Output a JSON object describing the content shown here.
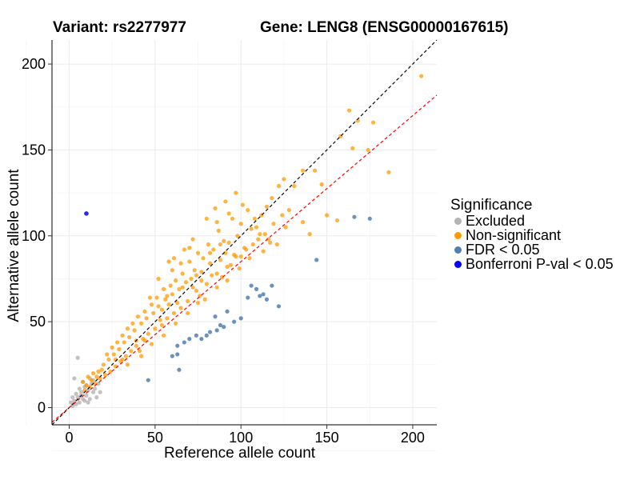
{
  "chart_data": {
    "type": "scatter",
    "title_left": "Variant: rs2277977",
    "title_right": "Gene: LENG8 (ENSG00000167615)",
    "xlabel": "Reference allele count",
    "ylabel": "Alternative allele count",
    "xlim": [
      -10,
      214
    ],
    "ylim": [
      -10,
      214
    ],
    "xticks": [
      0,
      50,
      100,
      150,
      200
    ],
    "yticks": [
      0,
      50,
      100,
      150,
      200
    ],
    "grid": true,
    "legend": {
      "title": "Significance",
      "position": "right",
      "entries": [
        {
          "label": "Excluded",
          "color": "#b3b3b3"
        },
        {
          "label": "Non-significant",
          "color": "#ff9900"
        },
        {
          "label": "FDR < 0.05",
          "color": "#4f7fb3"
        },
        {
          "label": "Bonferroni P-val < 0.05",
          "color": "#0000ff"
        }
      ]
    },
    "reference_lines": [
      {
        "name": "identity",
        "slope": 1.0,
        "intercept": 0,
        "color": "#000000",
        "style": "dashed"
      },
      {
        "name": "fitted",
        "slope": 0.85,
        "intercept": 0,
        "color": "#ff0000",
        "style": "dashed"
      }
    ],
    "series": [
      {
        "name": "Excluded",
        "color": "#b3b3b3",
        "points": [
          [
            2,
            1
          ],
          [
            3,
            4
          ],
          [
            4,
            2
          ],
          [
            5,
            6
          ],
          [
            6,
            3
          ],
          [
            7,
            9
          ],
          [
            8,
            5
          ],
          [
            9,
            12
          ],
          [
            10,
            7
          ],
          [
            11,
            10
          ],
          [
            12,
            5
          ],
          [
            13,
            14
          ],
          [
            14,
            9
          ],
          [
            15,
            11
          ],
          [
            16,
            6
          ],
          [
            4,
            8
          ],
          [
            6,
            11
          ],
          [
            8,
            15
          ],
          [
            5,
            29
          ],
          [
            3,
            17
          ],
          [
            10,
            13
          ],
          [
            12,
            17
          ],
          [
            17,
            14
          ],
          [
            18,
            9
          ],
          [
            9,
            4
          ],
          [
            7,
            7
          ],
          [
            11,
            3
          ],
          [
            14,
            16
          ],
          [
            2,
            6
          ],
          [
            1,
            3
          ]
        ]
      },
      {
        "name": "Non-significant",
        "color": "#ff9900",
        "points": [
          [
            205,
            193
          ],
          [
            163,
            173
          ],
          [
            168,
            167
          ],
          [
            177,
            166
          ],
          [
            165,
            151
          ],
          [
            186,
            137
          ],
          [
            174,
            150
          ],
          [
            158,
            158
          ],
          [
            143,
            138
          ],
          [
            147,
            130
          ],
          [
            136,
            138
          ],
          [
            125,
            133
          ],
          [
            131,
            129
          ],
          [
            150,
            112
          ],
          [
            156,
            109
          ],
          [
            136,
            108
          ],
          [
            140,
            101
          ],
          [
            128,
            115
          ],
          [
            126,
            105
          ],
          [
            122,
            129
          ],
          [
            118,
            122
          ],
          [
            115,
            117
          ],
          [
            112,
            112
          ],
          [
            114,
            101
          ],
          [
            108,
            110
          ],
          [
            110,
            98
          ],
          [
            106,
            104
          ],
          [
            104,
            115
          ],
          [
            102,
            93
          ],
          [
            100,
            107
          ],
          [
            98,
            100
          ],
          [
            96,
            89
          ],
          [
            95,
            110
          ],
          [
            93,
            96
          ],
          [
            92,
            82
          ],
          [
            90,
            97
          ],
          [
            88,
            86
          ],
          [
            87,
            103
          ],
          [
            86,
            78
          ],
          [
            84,
            92
          ],
          [
            82,
            84
          ],
          [
            81,
            95
          ],
          [
            80,
            72
          ],
          [
            78,
            87
          ],
          [
            77,
            79
          ],
          [
            75,
            90
          ],
          [
            74,
            68
          ],
          [
            73,
            80
          ],
          [
            71,
            75
          ],
          [
            70,
            85
          ],
          [
            69,
            62
          ],
          [
            68,
            73
          ],
          [
            66,
            78
          ],
          [
            65,
            58
          ],
          [
            64,
            69
          ],
          [
            62,
            74
          ],
          [
            61,
            55
          ],
          [
            60,
            66
          ],
          [
            59,
            71
          ],
          [
            57,
            52
          ],
          [
            56,
            63
          ],
          [
            55,
            69
          ],
          [
            54,
            48
          ],
          [
            52,
            59
          ],
          [
            51,
            64
          ],
          [
            50,
            46
          ],
          [
            49,
            55
          ],
          [
            48,
            60
          ],
          [
            46,
            43
          ],
          [
            45,
            52
          ],
          [
            44,
            56
          ],
          [
            43,
            40
          ],
          [
            42,
            49
          ],
          [
            40,
            53
          ],
          [
            39,
            36
          ],
          [
            38,
            45
          ],
          [
            37,
            49
          ],
          [
            36,
            33
          ],
          [
            35,
            41
          ],
          [
            34,
            46
          ],
          [
            33,
            30
          ],
          [
            32,
            38
          ],
          [
            31,
            42
          ],
          [
            30,
            27
          ],
          [
            29,
            34
          ],
          [
            28,
            38
          ],
          [
            27,
            24
          ],
          [
            26,
            31
          ],
          [
            25,
            35
          ],
          [
            24,
            21
          ],
          [
            23,
            28
          ],
          [
            22,
            31
          ],
          [
            21,
            19
          ],
          [
            20,
            25
          ],
          [
            19,
            22
          ],
          [
            18,
            17
          ],
          [
            17,
            21
          ],
          [
            16,
            18
          ],
          [
            15,
            14
          ],
          [
            14,
            20
          ],
          [
            13,
            16
          ],
          [
            12,
            12
          ],
          [
            11,
            18
          ],
          [
            10,
            13
          ],
          [
            9,
            10
          ],
          [
            8,
            15
          ],
          [
            27,
            28
          ],
          [
            39,
            39
          ],
          [
            54,
            57
          ],
          [
            63,
            61
          ],
          [
            72,
            70
          ],
          [
            76,
            65
          ],
          [
            83,
            77
          ],
          [
            89,
            76
          ],
          [
            94,
            83
          ],
          [
            97,
            88
          ],
          [
            103,
            92
          ],
          [
            107,
            95
          ],
          [
            111,
            101
          ],
          [
            116,
            98
          ],
          [
            119,
            107
          ],
          [
            121,
            95
          ],
          [
            124,
            112
          ],
          [
            58,
            85
          ],
          [
            52,
            75
          ],
          [
            47,
            64
          ],
          [
            61,
            87
          ],
          [
            67,
            92
          ],
          [
            72,
            98
          ],
          [
            80,
            110
          ],
          [
            85,
            116
          ],
          [
            91,
            120
          ],
          [
            97,
            125
          ],
          [
            42,
            30
          ],
          [
            48,
            37
          ],
          [
            55,
            42
          ],
          [
            62,
            49
          ],
          [
            69,
            55
          ],
          [
            75,
            61
          ],
          [
            79,
            63
          ],
          [
            86,
            70
          ],
          [
            92,
            74
          ],
          [
            99,
            81
          ],
          [
            105,
            87
          ],
          [
            113,
            91
          ],
          [
            117,
            96
          ],
          [
            70,
            93
          ],
          [
            60,
            80
          ],
          [
            65,
            84
          ],
          [
            86,
            108
          ],
          [
            93,
            113
          ],
          [
            101,
            118
          ],
          [
            34,
            25
          ],
          [
            41,
            33
          ],
          [
            57,
            65
          ],
          [
            66,
            70
          ],
          [
            77,
            74
          ],
          [
            82,
            90
          ],
          [
            91,
            90
          ],
          [
            100,
            88
          ],
          [
            109,
            105
          ],
          [
            31,
            28
          ],
          [
            44,
            39
          ],
          [
            53,
            51
          ],
          [
            58,
            60
          ],
          [
            74,
            77
          ],
          [
            88,
            95
          ]
        ]
      },
      {
        "name": "FDR < 0.05",
        "color": "#4f7fb3",
        "points": [
          [
            166,
            111
          ],
          [
            175,
            110
          ],
          [
            144,
            86
          ],
          [
            122,
            59
          ],
          [
            113,
            66
          ],
          [
            115,
            63
          ],
          [
            111,
            65
          ],
          [
            109,
            69
          ],
          [
            106,
            71
          ],
          [
            100,
            52
          ],
          [
            96,
            50
          ],
          [
            90,
            47
          ],
          [
            88,
            48
          ],
          [
            86,
            45
          ],
          [
            82,
            44
          ],
          [
            80,
            42
          ],
          [
            77,
            40
          ],
          [
            74,
            42
          ],
          [
            70,
            40
          ],
          [
            67,
            38
          ],
          [
            63,
            36
          ],
          [
            60,
            30
          ],
          [
            63,
            31
          ],
          [
            64,
            22
          ],
          [
            46,
            16
          ],
          [
            118,
            71
          ],
          [
            104,
            64
          ],
          [
            92,
            56
          ],
          [
            85,
            53
          ]
        ]
      },
      {
        "name": "Bonferroni P-val < 0.05",
        "color": "#0000ff",
        "points": [
          [
            10,
            113
          ]
        ]
      }
    ]
  }
}
